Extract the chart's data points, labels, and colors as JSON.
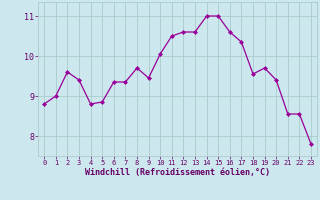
{
  "x": [
    0,
    1,
    2,
    3,
    4,
    5,
    6,
    7,
    8,
    9,
    10,
    11,
    12,
    13,
    14,
    15,
    16,
    17,
    18,
    19,
    20,
    21,
    22,
    23
  ],
  "y": [
    8.8,
    9.0,
    9.6,
    9.4,
    8.8,
    8.85,
    9.35,
    9.35,
    9.7,
    9.45,
    10.05,
    10.5,
    10.6,
    10.6,
    11.0,
    11.0,
    10.6,
    10.35,
    9.55,
    9.7,
    9.4,
    8.55,
    8.55,
    7.8
  ],
  "line_color": "#990099",
  "marker": "D",
  "marker_size": 2.0,
  "bg_color": "#cce8ee",
  "grid_color": "#aacccc",
  "xlabel": "Windchill (Refroidissement éolien,°C)",
  "xlabel_color": "#660066",
  "tick_color": "#660066",
  "ylabel_ticks": [
    8,
    9,
    10,
    11
  ],
  "xlim": [
    -0.5,
    23.5
  ],
  "ylim": [
    7.5,
    11.35
  ],
  "figsize": [
    3.2,
    2.0
  ],
  "dpi": 100
}
